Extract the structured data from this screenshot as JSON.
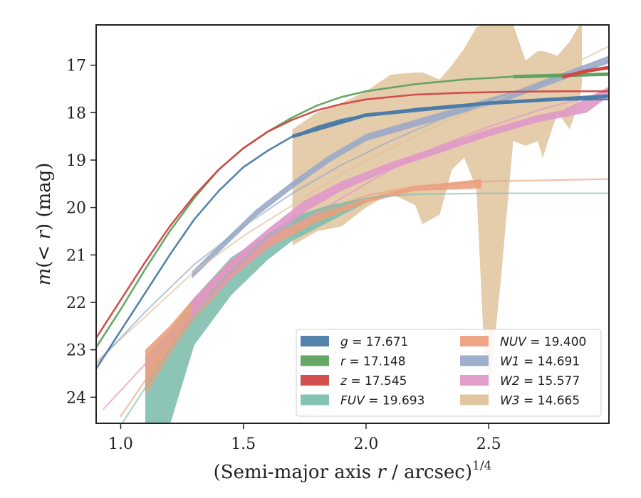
{
  "chart_data": {
    "type": "line",
    "xlabel": "(Semi-major axis r / arcsec)^{1/4}",
    "ylabel": "m(< r) (mag)",
    "xlim": [
      0.9,
      2.99
    ],
    "ylim": [
      24.55,
      16.15
    ],
    "y_inverted": true,
    "xticks": [
      "1.0",
      "1.5",
      "2.0",
      "2.5"
    ],
    "yticks": [
      "17",
      "18",
      "19",
      "20",
      "21",
      "22",
      "23",
      "24"
    ],
    "grid": false,
    "legend_position": "lower-right",
    "legend_columns": 2,
    "series": [
      {
        "id": "g",
        "name": "g = 17.671",
        "band": "g",
        "total_mag": "17.671",
        "color": "#4c7ca8",
        "model": [
          [
            0.9,
            23.4
          ],
          [
            1.0,
            22.6
          ],
          [
            1.1,
            21.8
          ],
          [
            1.2,
            21.0
          ],
          [
            1.3,
            20.25
          ],
          [
            1.4,
            19.65
          ],
          [
            1.5,
            19.15
          ],
          [
            1.6,
            18.8
          ],
          [
            1.7,
            18.5
          ],
          [
            1.8,
            18.3
          ],
          [
            1.9,
            18.15
          ],
          [
            2.0,
            18.05
          ],
          [
            2.2,
            17.92
          ],
          [
            2.4,
            17.83
          ],
          [
            2.6,
            17.77
          ],
          [
            2.8,
            17.73
          ],
          [
            2.99,
            17.72
          ]
        ],
        "measured": [
          [
            1.7,
            18.5
          ],
          [
            2.0,
            18.05
          ],
          [
            2.5,
            17.8
          ],
          [
            2.99,
            17.65
          ]
        ]
      },
      {
        "id": "r",
        "name": "r = 17.148",
        "band": "r",
        "total_mag": "17.148",
        "color": "#5ea35e",
        "model": [
          [
            0.9,
            22.95
          ],
          [
            1.0,
            22.15
          ],
          [
            1.1,
            21.3
          ],
          [
            1.2,
            20.5
          ],
          [
            1.3,
            19.8
          ],
          [
            1.4,
            19.2
          ],
          [
            1.5,
            18.75
          ],
          [
            1.6,
            18.4
          ],
          [
            1.7,
            18.1
          ],
          [
            1.8,
            17.85
          ],
          [
            1.9,
            17.67
          ],
          [
            2.0,
            17.55
          ],
          [
            2.2,
            17.4
          ],
          [
            2.4,
            17.3
          ],
          [
            2.6,
            17.24
          ],
          [
            2.8,
            17.2
          ],
          [
            2.99,
            17.19
          ]
        ],
        "measured": [
          [
            2.6,
            17.24
          ],
          [
            2.99,
            17.19
          ]
        ]
      },
      {
        "id": "z",
        "name": "z = 17.545",
        "band": "z",
        "total_mag": "17.545",
        "color": "#d34646",
        "model": [
          [
            0.9,
            22.75
          ],
          [
            1.0,
            21.95
          ],
          [
            1.1,
            21.15
          ],
          [
            1.2,
            20.4
          ],
          [
            1.3,
            19.75
          ],
          [
            1.4,
            19.2
          ],
          [
            1.5,
            18.75
          ],
          [
            1.6,
            18.4
          ],
          [
            1.7,
            18.15
          ],
          [
            1.8,
            17.95
          ],
          [
            1.9,
            17.82
          ],
          [
            2.0,
            17.72
          ],
          [
            2.2,
            17.62
          ],
          [
            2.4,
            17.58
          ],
          [
            2.6,
            17.56
          ],
          [
            2.8,
            17.55
          ],
          [
            2.99,
            17.55
          ]
        ],
        "measured": [
          [
            2.8,
            17.25
          ],
          [
            2.9,
            17.12
          ],
          [
            2.99,
            17.05
          ]
        ]
      },
      {
        "id": "fuv",
        "name": "FUV = 19.693",
        "band": "FUV",
        "total_mag": "19.693",
        "color": "#7fbfae",
        "model": [
          [
            1.0,
            24.6
          ],
          [
            1.2,
            23.0
          ],
          [
            1.4,
            21.6
          ],
          [
            1.6,
            20.6
          ],
          [
            1.8,
            20.05
          ],
          [
            2.0,
            19.8
          ],
          [
            2.2,
            19.72
          ],
          [
            2.5,
            19.7
          ],
          [
            2.99,
            19.7
          ]
        ],
        "band_area": [
          [
            1.1,
            23.15,
            24.6
          ],
          [
            1.2,
            22.6,
            24.6
          ],
          [
            1.3,
            21.9,
            22.9
          ],
          [
            1.45,
            21.05,
            21.85
          ],
          [
            1.6,
            20.55,
            21.1
          ],
          [
            1.7,
            20.2,
            20.7
          ],
          [
            1.85,
            19.95,
            20.3
          ],
          [
            2.0,
            19.8,
            19.9
          ]
        ]
      },
      {
        "id": "nuv",
        "name": "NUV = 19.400",
        "band": "NUV",
        "total_mag": "19.400",
        "color": "#eba07e",
        "model": [
          [
            1.0,
            24.4
          ],
          [
            1.2,
            22.9
          ],
          [
            1.4,
            21.65
          ],
          [
            1.6,
            20.7
          ],
          [
            1.8,
            20.1
          ],
          [
            2.0,
            19.75
          ],
          [
            2.2,
            19.55
          ],
          [
            2.5,
            19.45
          ],
          [
            2.99,
            19.4
          ]
        ],
        "band_area": [
          [
            1.1,
            23.0,
            23.95
          ],
          [
            1.2,
            22.5,
            23.1
          ],
          [
            1.3,
            21.9,
            22.35
          ],
          [
            1.45,
            21.1,
            21.5
          ],
          [
            1.6,
            20.6,
            20.85
          ],
          [
            1.8,
            20.15,
            20.3
          ],
          [
            2.0,
            19.8,
            19.9
          ],
          [
            2.2,
            19.55,
            19.65
          ],
          [
            2.47,
            19.4,
            19.6
          ]
        ]
      },
      {
        "id": "w1",
        "name": "W1 = 14.691",
        "band": "W1",
        "total_mag": "14.691",
        "color": "#9aaac8",
        "model": [
          [
            0.9,
            23.3
          ],
          [
            1.1,
            22.2
          ],
          [
            1.3,
            21.2
          ],
          [
            1.5,
            20.4
          ],
          [
            1.7,
            19.7
          ],
          [
            1.9,
            19.1
          ],
          [
            2.1,
            18.6
          ],
          [
            2.3,
            18.15
          ],
          [
            2.5,
            17.75
          ],
          [
            2.7,
            17.4
          ],
          [
            2.99,
            16.95
          ]
        ],
        "band_area": [
          [
            1.29,
            21.35,
            21.5
          ],
          [
            1.4,
            20.8,
            20.95
          ],
          [
            1.55,
            20.05,
            20.2
          ],
          [
            1.7,
            19.45,
            19.6
          ],
          [
            1.85,
            18.9,
            19.05
          ],
          [
            2.0,
            18.45,
            18.6
          ],
          [
            2.3,
            18.0,
            18.15
          ],
          [
            2.6,
            17.55,
            17.7
          ],
          [
            2.99,
            16.8,
            16.95
          ]
        ]
      },
      {
        "id": "w2",
        "name": "W2 = 15.577",
        "band": "W2",
        "total_mag": "15.577",
        "color": "#df98c8",
        "model": [
          [
            0.93,
            24.25
          ],
          [
            1.1,
            23.3
          ],
          [
            1.3,
            22.2
          ],
          [
            1.5,
            21.25
          ],
          [
            1.7,
            20.45
          ],
          [
            1.9,
            19.8
          ],
          [
            2.1,
            19.2
          ],
          [
            2.3,
            18.7
          ],
          [
            2.5,
            18.3
          ],
          [
            2.7,
            17.95
          ],
          [
            2.99,
            17.55
          ]
        ],
        "band_area": [
          [
            1.29,
            21.95,
            22.35
          ],
          [
            1.45,
            21.1,
            21.45
          ],
          [
            1.6,
            20.45,
            20.75
          ],
          [
            1.75,
            19.85,
            20.1
          ],
          [
            1.9,
            19.45,
            19.65
          ],
          [
            2.1,
            19.05,
            19.2
          ],
          [
            2.3,
            18.7,
            18.85
          ],
          [
            2.5,
            18.35,
            18.5
          ],
          [
            2.7,
            18.05,
            18.2
          ],
          [
            2.8,
            17.95,
            18.1
          ],
          [
            2.9,
            17.7,
            18.0
          ],
          [
            2.99,
            17.45,
            17.65
          ]
        ]
      },
      {
        "id": "w3",
        "name": "W3 = 14.665",
        "band": "W3",
        "total_mag": "14.665",
        "color": "#e0c39c",
        "model": [
          [
            0.9,
            23.25
          ],
          [
            1.1,
            22.3
          ],
          [
            1.3,
            21.35
          ],
          [
            1.5,
            20.6
          ],
          [
            1.7,
            19.95
          ],
          [
            1.9,
            19.3
          ],
          [
            2.1,
            18.75
          ],
          [
            2.3,
            18.25
          ],
          [
            2.5,
            17.8
          ],
          [
            2.7,
            17.35
          ],
          [
            2.99,
            16.6
          ]
        ],
        "band_area": [
          [
            1.7,
            18.35,
            20.8
          ],
          [
            1.8,
            18.0,
            20.5
          ],
          [
            1.9,
            17.8,
            20.4
          ],
          [
            2.0,
            17.55,
            20.0
          ],
          [
            2.1,
            17.2,
            19.7
          ],
          [
            2.2,
            17.15,
            19.95
          ],
          [
            2.23,
            17.15,
            20.35
          ],
          [
            2.3,
            17.3,
            20.15
          ],
          [
            2.35,
            17.0,
            19.2
          ],
          [
            2.4,
            16.65,
            18.95
          ],
          [
            2.45,
            16.2,
            19.6
          ],
          [
            2.48,
            16.15,
            22.9
          ],
          [
            2.5,
            16.15,
            24.0
          ],
          [
            2.55,
            16.15,
            21.5
          ],
          [
            2.6,
            16.15,
            18.6
          ],
          [
            2.65,
            16.9,
            18.7
          ],
          [
            2.7,
            16.7,
            18.6
          ],
          [
            2.72,
            16.7,
            18.95
          ],
          [
            2.78,
            16.8,
            18.0
          ],
          [
            2.83,
            16.5,
            18.35
          ],
          [
            2.87,
            16.15,
            17.75
          ],
          [
            2.88,
            16.15,
            17.4
          ]
        ]
      }
    ]
  }
}
